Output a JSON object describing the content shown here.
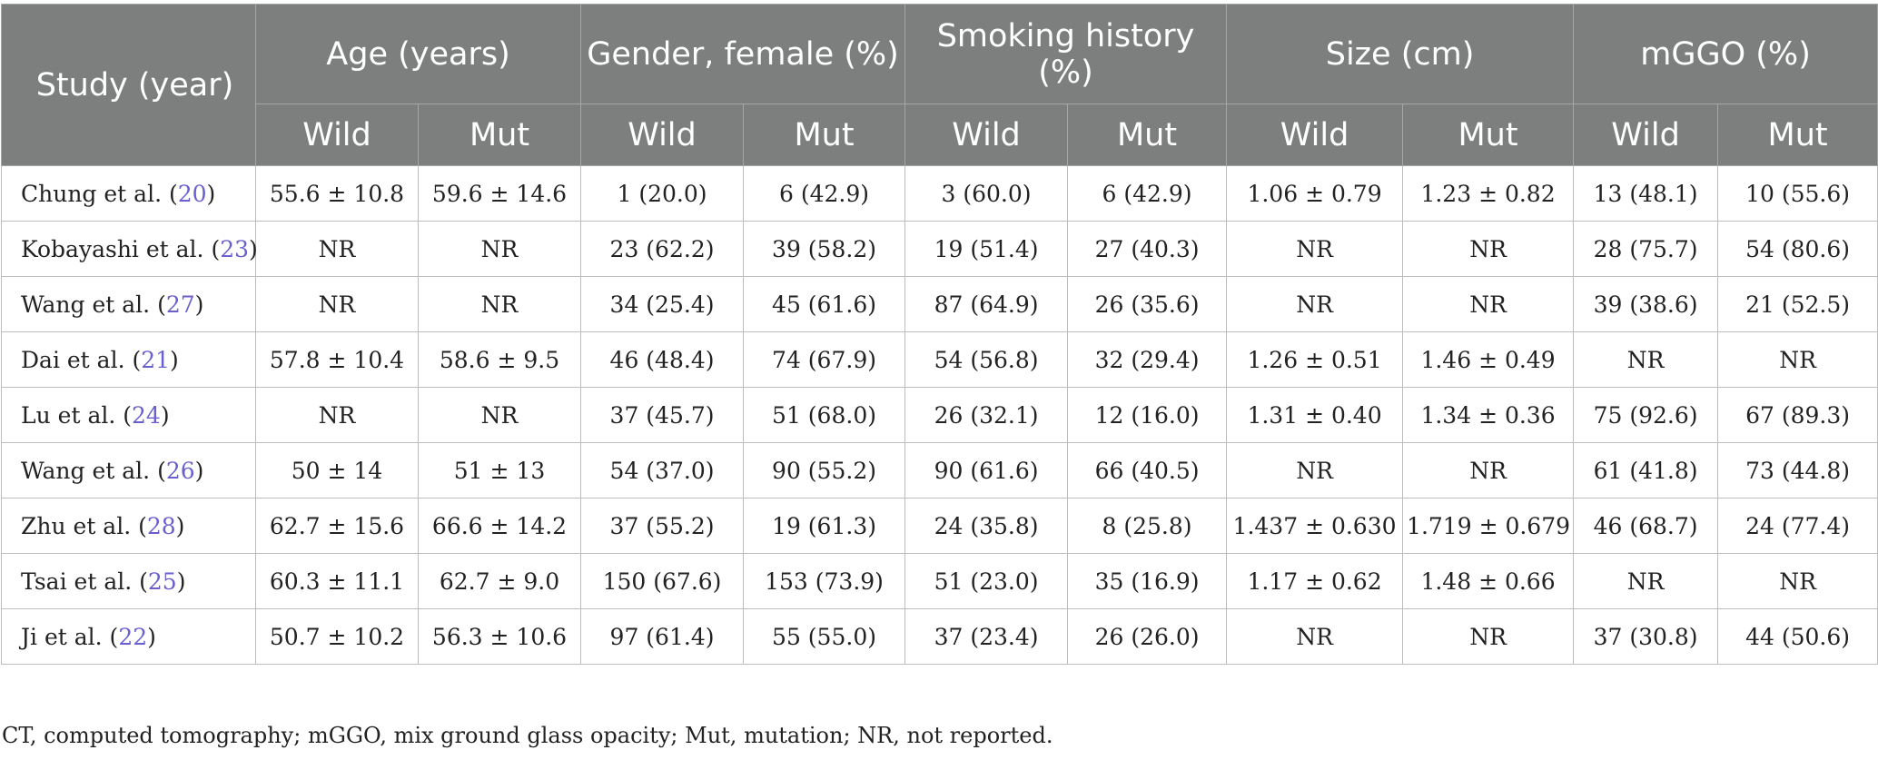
{
  "table": {
    "study_header": "Study (year)",
    "groups": [
      {
        "label": "Age (years)"
      },
      {
        "label": "Gender, female (%)"
      },
      {
        "label": "Smoking history (%)"
      },
      {
        "label": "Size (cm)"
      },
      {
        "label": "mGGO (%)"
      }
    ],
    "sub_headers": [
      "Wild",
      "Mut",
      "Wild",
      "Mut",
      "Wild",
      "Mut",
      "Wild",
      "Mut",
      "Wild",
      "Mut"
    ],
    "rows": [
      {
        "author": "Chung et al.",
        "ref": "20",
        "cells": [
          "55.6 ± 10.8",
          "59.6 ± 14.6",
          "1 (20.0)",
          "6 (42.9)",
          "3 (60.0)",
          "6 (42.9)",
          "1.06 ± 0.79",
          "1.23 ± 0.82",
          "13 (48.1)",
          "10 (55.6)"
        ]
      },
      {
        "author": "Kobayashi et al.",
        "ref": "23",
        "cells": [
          "NR",
          "NR",
          "23 (62.2)",
          "39 (58.2)",
          "19 (51.4)",
          "27 (40.3)",
          "NR",
          "NR",
          "28 (75.7)",
          "54 (80.6)"
        ]
      },
      {
        "author": "Wang et al.",
        "ref": "27",
        "cells": [
          "NR",
          "NR",
          "34 (25.4)",
          "45 (61.6)",
          "87 (64.9)",
          "26 (35.6)",
          "NR",
          "NR",
          "39 (38.6)",
          "21 (52.5)"
        ]
      },
      {
        "author": "Dai et al.",
        "ref": "21",
        "cells": [
          "57.8 ± 10.4",
          "58.6 ± 9.5",
          "46 (48.4)",
          "74 (67.9)",
          "54 (56.8)",
          "32 (29.4)",
          "1.26 ± 0.51",
          "1.46 ± 0.49",
          "NR",
          "NR"
        ]
      },
      {
        "author": "Lu et al.",
        "ref": "24",
        "cells": [
          "NR",
          "NR",
          "37 (45.7)",
          "51 (68.0)",
          "26 (32.1)",
          "12 (16.0)",
          "1.31 ± 0.40",
          "1.34 ± 0.36",
          "75 (92.6)",
          "67 (89.3)"
        ]
      },
      {
        "author": "Wang et al.",
        "ref": "26",
        "cells": [
          "50 ± 14",
          "51 ± 13",
          "54 (37.0)",
          "90 (55.2)",
          "90 (61.6)",
          "66 (40.5)",
          "NR",
          "NR",
          "61 (41.8)",
          "73 (44.8)"
        ]
      },
      {
        "author": "Zhu et al.",
        "ref": "28",
        "cells": [
          "62.7 ± 15.6",
          "66.6 ± 14.2",
          "37 (55.2)",
          "19 (61.3)",
          "24 (35.8)",
          "8 (25.8)",
          "1.437 ± 0.630",
          "1.719 ± 0.679",
          "46 (68.7)",
          "24 (77.4)"
        ]
      },
      {
        "author": "Tsai et al.",
        "ref": "25",
        "cells": [
          "60.3 ± 11.1",
          "62.7 ± 9.0",
          "150 (67.6)",
          "153 (73.9)",
          "51 (23.0)",
          "35 (16.9)",
          "1.17 ± 0.62",
          "1.48 ± 0.66",
          "NR",
          "NR"
        ]
      },
      {
        "author": "Ji et al.",
        "ref": "22",
        "cells": [
          "50.7 ± 10.2",
          "56.3 ± 10.6",
          "97 (61.4)",
          "55 (55.0)",
          "37 (23.4)",
          "26 (26.0)",
          "NR",
          "NR",
          "37 (30.8)",
          "44 (50.6)"
        ]
      }
    ]
  },
  "footnote": "CT, computed tomography; mGGO, mix ground glass opacity; Mut, mutation; NR, not reported."
}
